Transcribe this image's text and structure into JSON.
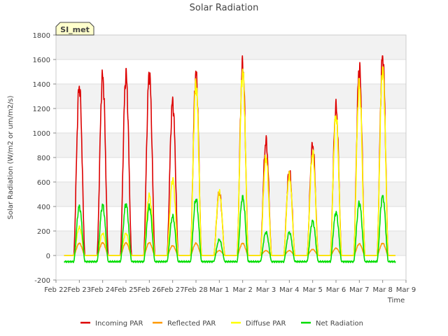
{
  "chart_data": {
    "type": "line",
    "title": "Solar Radiation",
    "xlabel": "Time",
    "ylabel": "Solar Radiation (W/m2 or um/m2/s)",
    "ylim": [
      -200,
      1800
    ],
    "yticks": [
      -200,
      0,
      200,
      400,
      600,
      800,
      1000,
      1200,
      1400,
      1600,
      1800
    ],
    "xlim": [
      0,
      15
    ],
    "xticks": [
      {
        "pos": 0,
        "label": "Feb 22"
      },
      {
        "pos": 1,
        "label": "Feb 23"
      },
      {
        "pos": 2,
        "label": "Feb 24"
      },
      {
        "pos": 3,
        "label": "Feb 25"
      },
      {
        "pos": 4,
        "label": "Feb 26"
      },
      {
        "pos": 5,
        "label": "Feb 27"
      },
      {
        "pos": 6,
        "label": "Feb 28"
      },
      {
        "pos": 7,
        "label": "Mar 1"
      },
      {
        "pos": 8,
        "label": "Mar 2"
      },
      {
        "pos": 9,
        "label": "Mar 3"
      },
      {
        "pos": 10,
        "label": "Mar 4"
      },
      {
        "pos": 11,
        "label": "Mar 5"
      },
      {
        "pos": 12,
        "label": "Mar 6"
      },
      {
        "pos": 13,
        "label": "Mar 7"
      },
      {
        "pos": 14,
        "label": "Mar 8"
      },
      {
        "pos": 15,
        "label": "Mar 9"
      }
    ],
    "day_centers": [
      1.0,
      2.0,
      3.0,
      4.0,
      5.0,
      6.0,
      7.0,
      8.0,
      9.0,
      10.0,
      11.0,
      12.0,
      13.0,
      14.0
    ],
    "series": [
      {
        "name": "Incoming PAR",
        "color": "#dd0000",
        "peaks": [
          1380,
          1460,
          1470,
          1480,
          1250,
          1480,
          520,
          1560,
          930,
          690,
          900,
          1210,
          1530,
          1630
        ]
      },
      {
        "name": "Reflected PAR",
        "color": "#ff9900",
        "peaks": [
          100,
          105,
          105,
          105,
          80,
          100,
          40,
          100,
          40,
          40,
          50,
          60,
          95,
          100
        ]
      },
      {
        "name": "Diffuse PAR",
        "color": "#ffff00",
        "peaks": [
          230,
          180,
          180,
          490,
          620,
          1400,
          520,
          1500,
          800,
          650,
          830,
          1140,
          1390,
          1540
        ]
      },
      {
        "name": "Net Radiation",
        "color": "#00dd00",
        "peaks": [
          400,
          410,
          420,
          400,
          320,
          460,
          130,
          480,
          190,
          190,
          280,
          350,
          430,
          490
        ],
        "night": -50
      }
    ],
    "station_label": "SI_met",
    "grid": true,
    "legend_position": "bottom"
  }
}
